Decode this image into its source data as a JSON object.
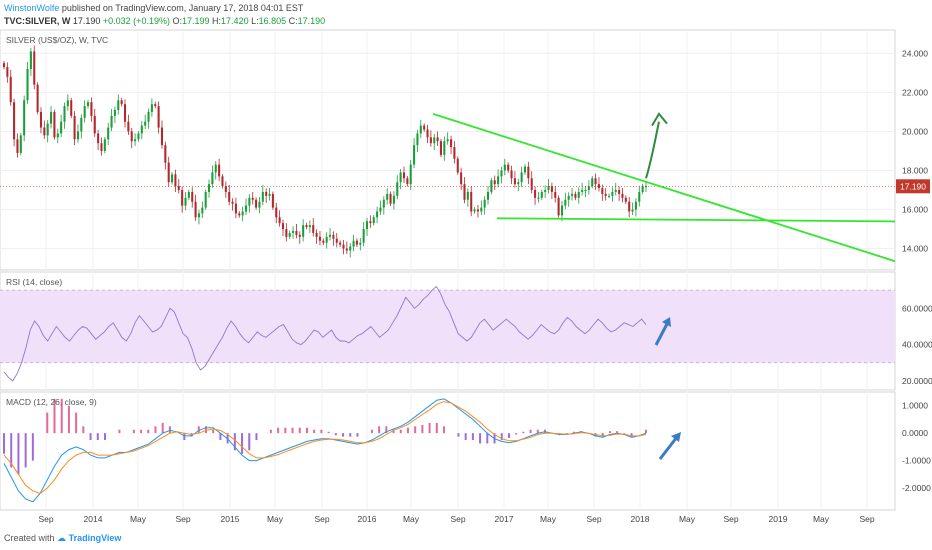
{
  "header": {
    "author": "WinstonWolfe",
    "published": "published on TradingView.com, January 17, 2018 04:01 EST",
    "symbol": "TVC:SILVER, W",
    "last": "17.190",
    "change": "+0.032 (+0.19%)",
    "o_label": "O:",
    "o_value": "17.199",
    "h_label": "H:",
    "h_value": "17.420",
    "l_label": "L:",
    "l_value": "16.805",
    "c_label": "C:",
    "c_value": "17.190"
  },
  "footer": {
    "created_with": "Created with",
    "brand": "TradingView"
  },
  "colors": {
    "up": "#1a9e3a",
    "down": "#b3282d",
    "trendline": "#33e62e",
    "rsi_band": "#f0e0fa",
    "macd_line": "#2196f3",
    "signal_line": "#ff8c1a",
    "annotation_arrow_green": "#2e8b3d",
    "annotation_arrow_blue": "#3a7cc7",
    "price_tag": "#c0392b"
  },
  "chart_data": {
    "type": "candlestick",
    "title": "SILVER (US$/OZ), W, TVC",
    "last_price": 17.19,
    "x_ticks": [
      "Sep",
      "2014",
      "May",
      "Sep",
      "2015",
      "May",
      "Sep",
      "2016",
      "May",
      "Sep",
      "2017",
      "May",
      "Sep",
      "2018",
      "May",
      "Sep",
      "2019",
      "May",
      "Sep"
    ],
    "price_axis": {
      "ticks": [
        "24.000",
        "22.000",
        "20.000",
        "18.000",
        "16.000",
        "14.000"
      ],
      "ylim": [
        12.9,
        25.2
      ]
    },
    "price_series": {
      "interval": "W",
      "approx_weekly_close": [
        23.3,
        22.8,
        21.5,
        19.6,
        18.9,
        19.8,
        21.6,
        23.2,
        24.1,
        22.4,
        21.0,
        20.2,
        19.8,
        20.4,
        21.0,
        19.7,
        19.9,
        20.5,
        21.3,
        21.6,
        20.8,
        19.6,
        20.0,
        20.7,
        21.3,
        21.5,
        20.8,
        19.9,
        19.4,
        19.0,
        19.6,
        20.2,
        20.8,
        21.1,
        21.6,
        21.4,
        20.5,
        20.0,
        19.5,
        19.6,
        19.9,
        20.3,
        20.5,
        21.0,
        21.4,
        21.3,
        20.2,
        19.3,
        18.4,
        17.4,
        17.8,
        17.2,
        17.0,
        16.2,
        16.6,
        16.9,
        16.4,
        15.6,
        15.8,
        16.1,
        16.9,
        17.3,
        17.9,
        18.3,
        17.7,
        17.2,
        16.9,
        16.4,
        16.3,
        15.8,
        15.7,
        15.9,
        16.2,
        16.6,
        16.5,
        16.1,
        16.4,
        16.9,
        16.7,
        16.8,
        16.1,
        15.6,
        15.3,
        15.0,
        14.6,
        14.8,
        14.9,
        14.7,
        14.6,
        15.2,
        15.1,
        15.2,
        14.8,
        14.6,
        14.4,
        14.3,
        14.6,
        14.7,
        14.5,
        14.3,
        14.2,
        14.0,
        13.9,
        14.1,
        14.4,
        14.2,
        14.3,
        15.0,
        15.4,
        15.3,
        15.6,
        15.9,
        16.1,
        16.5,
        16.8,
        16.3,
        16.7,
        17.4,
        17.9,
        17.6,
        17.3,
        18.3,
        19.3,
        19.9,
        20.3,
        20.1,
        19.7,
        19.4,
        19.7,
        19.5,
        18.8,
        19.5,
        19.6,
        19.2,
        18.6,
        17.9,
        17.3,
        16.5,
        16.9,
        15.9,
        16.0,
        15.9,
        16.1,
        16.5,
        16.9,
        17.5,
        17.3,
        17.7,
        18.0,
        18.3,
        18.0,
        17.6,
        17.3,
        17.4,
        17.9,
        18.2,
        17.6,
        17.0,
        16.6,
        16.6,
        16.9,
        17.0,
        17.2,
        16.9,
        16.6,
        15.7,
        16.2,
        16.5,
        16.7,
        16.8,
        16.6,
        16.9,
        17.0,
        17.0,
        17.2,
        17.6,
        17.3,
        17.1,
        16.8,
        16.7,
        16.7,
        16.9,
        17.0,
        16.8,
        16.6,
        16.4,
        15.9,
        16.0,
        16.4,
        16.9,
        17.2,
        17.2
      ]
    },
    "trendlines": [
      {
        "type": "descending",
        "from": [
          "2016-06",
          20.9
        ],
        "to": [
          "2019-11",
          13.35
        ]
      },
      {
        "type": "support",
        "from": [
          "2016-12",
          15.55
        ],
        "to": [
          "2019-11",
          15.39
        ]
      }
    ],
    "annotations": [
      "green upward arrow near breakout",
      "blue upward arrow in RSI pane",
      "blue upward arrow in MACD pane"
    ],
    "rsi": {
      "label": "RSI (14, close)",
      "ticks": [
        "60.0000",
        "40.0000",
        "20.0000"
      ],
      "bands": [
        30,
        70
      ],
      "ylim": [
        15,
        80
      ],
      "approx_values": [
        25,
        22,
        20,
        24,
        30,
        38,
        48,
        53,
        50,
        45,
        42,
        46,
        50,
        47,
        44,
        42,
        45,
        48,
        50,
        49,
        46,
        43,
        45,
        47,
        50,
        52,
        48,
        44,
        42,
        46,
        52,
        56,
        53,
        50,
        47,
        48,
        50,
        55,
        60,
        58,
        52,
        46,
        44,
        38,
        30,
        26,
        28,
        32,
        36,
        40,
        44,
        49,
        53,
        50,
        46,
        43,
        41,
        44,
        47,
        45,
        44,
        46,
        48,
        50,
        51,
        47,
        43,
        41,
        40,
        42,
        45,
        48,
        47,
        44,
        46,
        48,
        44,
        42,
        42,
        41,
        43,
        45,
        46,
        48,
        50,
        47,
        44,
        46,
        48,
        52,
        56,
        61,
        66,
        63,
        60,
        62,
        65,
        67,
        70,
        72,
        68,
        62,
        58,
        52,
        46,
        44,
        42,
        44,
        48,
        52,
        54,
        51,
        48,
        50,
        52,
        54,
        52,
        50,
        47,
        45,
        43,
        45,
        48,
        51,
        49,
        47,
        46,
        48,
        52,
        55,
        53,
        50,
        48,
        46,
        48,
        51,
        54,
        52,
        49,
        47,
        48,
        50,
        52,
        51,
        50,
        52,
        54,
        51
      ],
      "line_color": "#9575cd"
    },
    "macd": {
      "label": "MACD (12, 26, close, 9)",
      "ticks": [
        "1.0000",
        "0.0000",
        "-1.0000",
        "-2.0000"
      ],
      "ylim": [
        -2.8,
        1.5
      ],
      "approx_macd": [
        -1.1,
        -1.6,
        -2.1,
        -2.4,
        -2.5,
        -2.2,
        -1.7,
        -1.2,
        -0.8,
        -0.6,
        -0.5,
        -0.6,
        -0.8,
        -0.9,
        -0.9,
        -0.8,
        -0.7,
        -0.7,
        -0.6,
        -0.5,
        -0.4,
        -0.2,
        0.0,
        0.1,
        0.05,
        -0.1,
        -0.1,
        0.1,
        0.2,
        0.2,
        0.0,
        -0.2,
        -0.5,
        -0.8,
        -1.0,
        -1.0,
        -0.9,
        -0.8,
        -0.7,
        -0.6,
        -0.5,
        -0.4,
        -0.3,
        -0.25,
        -0.2,
        -0.2,
        -0.25,
        -0.3,
        -0.35,
        -0.4,
        -0.35,
        -0.25,
        -0.1,
        0.05,
        0.15,
        0.25,
        0.4,
        0.6,
        0.8,
        1.0,
        1.2,
        1.25,
        1.1,
        0.9,
        0.7,
        0.5,
        0.25,
        0.0,
        -0.2,
        -0.3,
        -0.35,
        -0.3,
        -0.2,
        -0.1,
        0.0,
        0.05,
        0.0,
        -0.05,
        -0.05,
        0.0,
        0.05,
        0.0,
        -0.1,
        -0.15,
        -0.05,
        0.0,
        -0.05,
        -0.15,
        -0.1,
        0.0
      ],
      "approx_signal": [
        -0.8,
        -1.1,
        -1.5,
        -1.9,
        -2.1,
        -2.2,
        -2.0,
        -1.7,
        -1.3,
        -1.0,
        -0.8,
        -0.7,
        -0.7,
        -0.8,
        -0.8,
        -0.8,
        -0.75,
        -0.7,
        -0.65,
        -0.55,
        -0.45,
        -0.3,
        -0.15,
        0.0,
        0.05,
        0.0,
        -0.05,
        0.0,
        0.1,
        0.15,
        0.1,
        -0.05,
        -0.25,
        -0.5,
        -0.75,
        -0.9,
        -0.9,
        -0.85,
        -0.78,
        -0.68,
        -0.58,
        -0.48,
        -0.38,
        -0.3,
        -0.25,
        -0.22,
        -0.22,
        -0.25,
        -0.3,
        -0.35,
        -0.35,
        -0.3,
        -0.2,
        -0.05,
        0.1,
        0.2,
        0.32,
        0.5,
        0.68,
        0.85,
        1.05,
        1.15,
        1.1,
        0.95,
        0.8,
        0.6,
        0.4,
        0.15,
        -0.05,
        -0.2,
        -0.28,
        -0.28,
        -0.22,
        -0.15,
        -0.05,
        0.0,
        0.0,
        -0.02,
        -0.04,
        -0.02,
        0.02,
        0.0,
        -0.05,
        -0.1,
        -0.08,
        -0.03,
        -0.04,
        -0.1,
        -0.1,
        -0.05
      ]
    }
  }
}
